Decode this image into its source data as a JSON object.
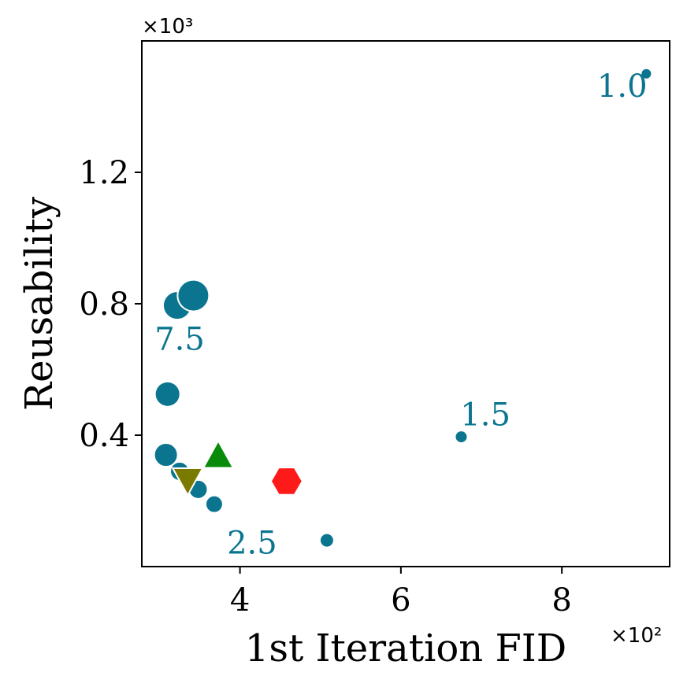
{
  "chart_data": {
    "type": "scatter",
    "title": "",
    "xlabel": "1st Iteration FID",
    "ylabel": "Reusability",
    "x_multiplier_label": "×10²",
    "y_multiplier_label": "×10³",
    "xlim": [
      2.78,
      9.34
    ],
    "ylim": [
      0.0,
      1.6
    ],
    "x_ticks": [
      4,
      6,
      8
    ],
    "x_tick_labels": [
      "4",
      "6",
      "8"
    ],
    "y_ticks": [
      0.4,
      0.8,
      1.2
    ],
    "y_tick_labels": [
      "0.4",
      "0.8",
      "1.2"
    ],
    "grid": false,
    "colors": {
      "main": "#0b7590",
      "triangle_up": "#0a8a0a",
      "triangle_down": "#7a7a00",
      "hexagon": "#ff1a1a"
    },
    "series": [
      {
        "marker": "circle",
        "color": "#0b7590",
        "points": [
          {
            "x": 9.05,
            "y": 1.5,
            "size": 7
          },
          {
            "x": 6.75,
            "y": 0.395,
            "size": 8
          },
          {
            "x": 5.08,
            "y": 0.08,
            "size": 9
          },
          {
            "x": 3.68,
            "y": 0.19,
            "size": 11
          },
          {
            "x": 3.48,
            "y": 0.235,
            "size": 12
          },
          {
            "x": 3.25,
            "y": 0.29,
            "size": 12
          },
          {
            "x": 3.08,
            "y": 0.34,
            "size": 15
          },
          {
            "x": 3.1,
            "y": 0.525,
            "size": 16
          },
          {
            "x": 3.22,
            "y": 0.795,
            "size": 18
          },
          {
            "x": 3.42,
            "y": 0.825,
            "size": 20
          }
        ]
      },
      {
        "marker": "triangle-up",
        "color": "#0a8a0a",
        "points": [
          {
            "x": 3.73,
            "y": 0.335,
            "size": 20
          }
        ]
      },
      {
        "marker": "triangle-down",
        "color": "#7a7a00",
        "points": [
          {
            "x": 3.35,
            "y": 0.265,
            "size": 20
          }
        ]
      },
      {
        "marker": "hexagon",
        "color": "#ff1a1a",
        "points": [
          {
            "x": 4.58,
            "y": 0.26,
            "size": 20
          }
        ]
      }
    ],
    "annotations": [
      {
        "text": "1.0",
        "x": 8.75,
        "y": 1.43,
        "color": "#0b7590"
      },
      {
        "text": "1.5",
        "x": 7.05,
        "y": 0.43,
        "color": "#0b7590"
      },
      {
        "text": "7.5",
        "x": 3.25,
        "y": 0.66,
        "color": "#0b7590"
      },
      {
        "text": "2.5",
        "x": 4.15,
        "y": 0.04,
        "color": "#0b7590"
      }
    ]
  }
}
